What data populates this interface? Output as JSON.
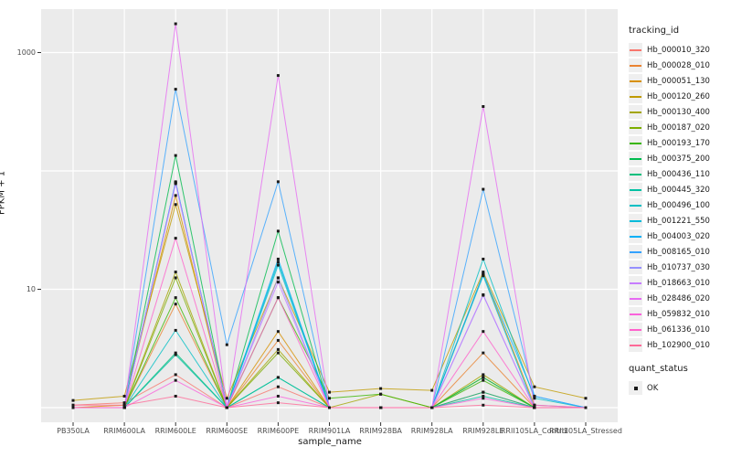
{
  "chart_data": {
    "type": "line",
    "title": "",
    "xlabel": "sample_name",
    "ylabel": "FPKM + 1",
    "y_scale": "log10",
    "ylim": [
      0.85,
      2300
    ],
    "grid": true,
    "legend_position": "right",
    "y_ticks": [
      {
        "label": "1000",
        "value": 1000
      },
      {
        "label": "10",
        "value": 10
      }
    ],
    "y_gridlines": [
      1,
      10,
      100,
      1000
    ],
    "categories": [
      "PB350LA",
      "RRIM600LA",
      "RRIM600LE",
      "RRIM600SE",
      "RRIM600PE",
      "RRIM901LA",
      "RRIM928BA",
      "RRIM928LA",
      "RRIM928LE",
      "RRII105LA_Control",
      "RRII105LA_Stressed"
    ],
    "point_shape": "filled-square",
    "point_color": "#1A1A1A",
    "series": [
      {
        "name": "Hb_000010_320",
        "color": "#F8766D",
        "values": [
          1.05,
          1.1,
          1.9,
          1.0,
          1.5,
          1.0,
          1.0,
          1.0,
          1.35,
          1.0,
          1.0
        ]
      },
      {
        "name": "Hb_000028_010",
        "color": "#EA8331",
        "values": [
          1.0,
          1.0,
          7.5,
          1.0,
          3.7,
          1.0,
          1.0,
          1.0,
          2.9,
          1.0,
          1.0
        ]
      },
      {
        "name": "Hb_000051_130",
        "color": "#D89000",
        "values": [
          1.0,
          1.05,
          62,
          1.0,
          4.4,
          1.0,
          1.0,
          1.0,
          13.5,
          1.05,
          1.0
        ]
      },
      {
        "name": "Hb_000120_260",
        "color": "#C09B00",
        "values": [
          1.15,
          1.25,
          52,
          1.2,
          12.5,
          1.35,
          1.45,
          1.4,
          14,
          1.5,
          1.2
        ]
      },
      {
        "name": "Hb_000130_400",
        "color": "#A3A500",
        "values": [
          1.0,
          1.0,
          14,
          1.0,
          3.1,
          1.0,
          1.3,
          1.0,
          1.9,
          1.0,
          1.0
        ]
      },
      {
        "name": "Hb_000187_020",
        "color": "#7CAE00",
        "values": [
          1.0,
          1.0,
          12.5,
          1.0,
          2.9,
          1.0,
          1.0,
          1.0,
          1.8,
          1.0,
          1.0
        ]
      },
      {
        "name": "Hb_000193_170",
        "color": "#39B600",
        "values": [
          1.0,
          1.0,
          8.5,
          1.0,
          8.5,
          1.2,
          1.3,
          1.0,
          1.7,
          1.0,
          1.0
        ]
      },
      {
        "name": "Hb_000375_200",
        "color": "#00BB4E",
        "values": [
          1.0,
          1.0,
          135,
          1.0,
          31,
          1.0,
          1.0,
          1.0,
          1.8,
          1.0,
          1.0
        ]
      },
      {
        "name": "Hb_000436_110",
        "color": "#00BF7D",
        "values": [
          1.0,
          1.0,
          2.9,
          1.0,
          1.8,
          1.0,
          1.0,
          1.0,
          1.35,
          1.0,
          1.0
        ]
      },
      {
        "name": "Hb_000445_320",
        "color": "#00C1A3",
        "values": [
          1.0,
          1.0,
          2.8,
          1.0,
          1.8,
          1.0,
          1.0,
          1.0,
          1.25,
          1.0,
          1.0
        ]
      },
      {
        "name": "Hb_000496_100",
        "color": "#00BFC4",
        "values": [
          1.0,
          1.0,
          4.5,
          1.0,
          17,
          1.0,
          1.0,
          1.0,
          18,
          1.2,
          1.0
        ]
      },
      {
        "name": "Hb_001221_550",
        "color": "#00BBDA",
        "values": [
          1.0,
          1.0,
          81,
          1.0,
          16,
          1.0,
          1.0,
          1.0,
          13,
          1.0,
          1.0
        ]
      },
      {
        "name": "Hb_004003_020",
        "color": "#00B0F6",
        "values": [
          1.0,
          1.0,
          80,
          1.0,
          18,
          1.0,
          1.0,
          1.0,
          13.5,
          1.25,
          1.0
        ]
      },
      {
        "name": "Hb_008165_010",
        "color": "#35A2FF",
        "values": [
          1.0,
          1.0,
          490,
          3.4,
          81,
          1.0,
          1.0,
          1.0,
          70,
          1.25,
          1.0
        ]
      },
      {
        "name": "Hb_010737_030",
        "color": "#9590FF",
        "values": [
          1.0,
          1.0,
          79,
          1.0,
          12.5,
          1.0,
          1.0,
          1.0,
          8.9,
          1.0,
          1.0
        ]
      },
      {
        "name": "Hb_018663_010",
        "color": "#C77CFF",
        "values": [
          1.0,
          1.0,
          78,
          1.0,
          11.5,
          1.0,
          1.0,
          1.0,
          9.0,
          1.0,
          1.0
        ]
      },
      {
        "name": "Hb_028486_020",
        "color": "#E76BF3",
        "values": [
          1.0,
          1.0,
          1750,
          1.0,
          640,
          1.0,
          1.0,
          1.0,
          350,
          1.05,
          1.0
        ]
      },
      {
        "name": "Hb_059832_010",
        "color": "#FA62DB",
        "values": [
          1.0,
          1.0,
          1.7,
          1.0,
          1.25,
          1.0,
          1.0,
          1.0,
          1.2,
          1.0,
          1.0
        ]
      },
      {
        "name": "Hb_061336_010",
        "color": "#FF61CC",
        "values": [
          1.0,
          1.0,
          27,
          1.0,
          8.5,
          1.0,
          1.0,
          1.0,
          4.4,
          1.0,
          1.0
        ]
      },
      {
        "name": "Hb_102900_010",
        "color": "#FF6A98",
        "values": [
          1.05,
          1.05,
          1.25,
          1.0,
          1.1,
          1.0,
          1.0,
          1.0,
          1.05,
          1.0,
          1.0
        ]
      }
    ]
  },
  "legend": {
    "title": "tracking_id"
  },
  "legend2": {
    "title": "quant_status",
    "items": [
      {
        "label": "OK",
        "marker": "black-square"
      }
    ]
  },
  "colors": {
    "panel_background": "#EBEBEB",
    "gridline": "#FFFFFF",
    "axis_text": "#4D4D4D",
    "title_text": "#1A1A1A",
    "tick_mark": "#333333"
  }
}
